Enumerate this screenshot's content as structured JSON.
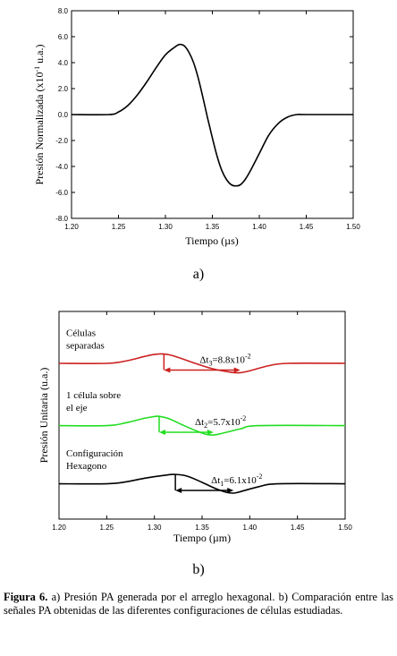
{
  "chart_data": [
    {
      "type": "line",
      "panel_label": "a)",
      "xlabel": "Tiempo (µs)",
      "ylabel": "Presión Normalizada (x10",
      "ylabel_exp": "-1",
      "ylabel_tail": " u.a.)",
      "xlim": [
        1.2,
        1.5
      ],
      "ylim": [
        -8.0,
        8.0
      ],
      "xticks": [
        "1.20",
        "1.25",
        "1.30",
        "1.35",
        "1.40",
        "1.45",
        "1.50"
      ],
      "yticks": [
        "8.0",
        "6.0",
        "4.0",
        "2.0",
        "0.0",
        "-2.0",
        "-4.0",
        "-6.0",
        "-8.0"
      ],
      "series": [
        {
          "color": "#000000",
          "x": [
            1.2,
            1.24,
            1.25,
            1.26,
            1.27,
            1.28,
            1.29,
            1.3,
            1.31,
            1.315,
            1.32,
            1.325,
            1.33,
            1.335,
            1.34,
            1.345,
            1.35,
            1.355,
            1.36,
            1.365,
            1.37,
            1.375,
            1.38,
            1.385,
            1.39,
            1.4,
            1.41,
            1.42,
            1.43,
            1.44,
            1.45,
            1.5
          ],
          "y": [
            0.0,
            0.0,
            0.2,
            0.7,
            1.5,
            2.5,
            3.6,
            4.6,
            5.2,
            5.4,
            5.3,
            4.8,
            4.0,
            2.8,
            1.3,
            -0.3,
            -1.8,
            -3.2,
            -4.3,
            -5.0,
            -5.4,
            -5.5,
            -5.4,
            -5.0,
            -4.4,
            -3.0,
            -1.6,
            -0.7,
            -0.2,
            0.0,
            0.0,
            0.0
          ]
        }
      ]
    },
    {
      "type": "line",
      "panel_label": "b)",
      "xlabel": "Tiempo (µm)",
      "ylabel": "Presión Unitaria (u.a.)",
      "xlim": [
        1.2,
        1.5
      ],
      "xticks": [
        "1.20",
        "1.25",
        "1.30",
        "1.35",
        "1.40",
        "1.45",
        "1.50"
      ],
      "series": [
        {
          "name": "Células separadas",
          "label_lines": [
            "Células",
            "separadas"
          ],
          "color": "#cc2020",
          "baseline": 0.25,
          "amplitude": 0.045,
          "peak_x": 1.31,
          "trough_x": 1.39,
          "x": [
            1.2,
            1.25,
            1.27,
            1.29,
            1.3,
            1.31,
            1.32,
            1.34,
            1.36,
            1.38,
            1.39,
            1.4,
            1.42,
            1.44,
            1.5
          ],
          "y": [
            0.0,
            0.0,
            0.25,
            0.75,
            0.95,
            1.0,
            0.8,
            0.1,
            -0.55,
            -0.95,
            -1.0,
            -0.8,
            -0.25,
            0.0,
            0.0
          ],
          "arrow_color": "#cc2020",
          "delta_label": "Δt",
          "delta_sub": "3",
          "delta_value": "=8.8x10",
          "delta_exp": "-2"
        },
        {
          "name": "1 célula sobre el eje",
          "label_lines": [
            "1 célula sobre",
            "el eje"
          ],
          "color": "#22dd22",
          "baseline": 0.55,
          "amplitude": 0.045,
          "peak_x": 1.305,
          "trough_x": 1.362,
          "x": [
            1.2,
            1.25,
            1.27,
            1.29,
            1.3,
            1.305,
            1.315,
            1.33,
            1.345,
            1.355,
            1.362,
            1.37,
            1.39,
            1.41,
            1.5
          ],
          "y": [
            0.0,
            0.0,
            0.3,
            0.8,
            0.97,
            1.0,
            0.75,
            0.05,
            -0.6,
            -0.95,
            -1.0,
            -0.85,
            -0.35,
            0.0,
            0.0
          ],
          "arrow_color": "#22dd22",
          "delta_label": "Δt",
          "delta_sub": "2",
          "delta_value": "=5.7x10",
          "delta_exp": "-2"
        },
        {
          "name": "Configuración Hexagono",
          "label_lines": [
            "Configuración",
            "Hexagono"
          ],
          "color": "#000000",
          "baseline": 0.83,
          "amplitude": 0.045,
          "peak_x": 1.322,
          "trough_x": 1.383,
          "x": [
            1.2,
            1.25,
            1.27,
            1.29,
            1.31,
            1.322,
            1.335,
            1.35,
            1.365,
            1.375,
            1.383,
            1.39,
            1.41,
            1.43,
            1.5
          ],
          "y": [
            0.0,
            0.0,
            0.2,
            0.6,
            0.9,
            1.0,
            0.8,
            0.15,
            -0.55,
            -0.9,
            -1.0,
            -0.85,
            -0.3,
            0.0,
            0.0
          ],
          "arrow_color": "#000000",
          "delta_label": "Δt",
          "delta_sub": "1",
          "delta_value": "=6.1x10",
          "delta_exp": "-2"
        }
      ]
    }
  ],
  "caption": {
    "figure_label": "Figura 6.",
    "text": " a) Presión PA generada por el arreglo hexagonal. b) Comparación entre las señales PA obtenidas de las diferentes configuraciones de células estudiadas."
  }
}
